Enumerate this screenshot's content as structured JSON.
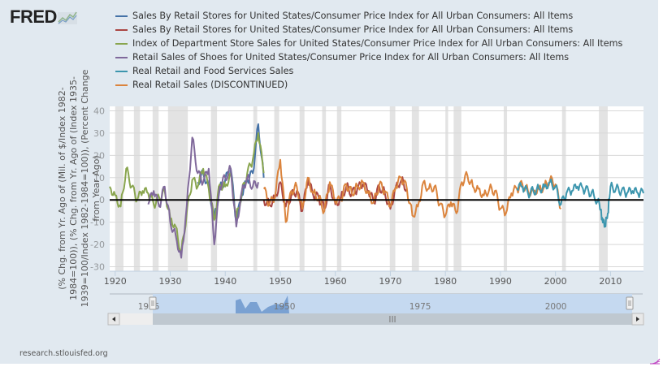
{
  "logo": {
    "text": "FRED",
    "icon": "fred-chart-icon"
  },
  "legend": [
    {
      "label": "Sales By Retail Stores for United States/Consumer Price Index for All Urban Consumers: All Items",
      "color": "#4572a7"
    },
    {
      "label": "Sales By Retail Stores for United States/Consumer Price Index for All Urban Consumers: All Items",
      "color": "#aa4643"
    },
    {
      "label": "Index of Department Store Sales for United States/Consumer Price Index for All Urban Consumers: All Items",
      "color": "#89a54e"
    },
    {
      "label": "Retail Sales of Shoes for United States/Consumer Price Index for All Urban Consumers: All Items",
      "color": "#80699b"
    },
    {
      "label": "Real Retail and Food Services Sales",
      "color": "#3d96ae"
    },
    {
      "label": "Real Retail Sales (DISCONTINUED)",
      "color": "#db843d"
    }
  ],
  "credit": "research.stlouisfed.org",
  "chart_data": {
    "type": "line",
    "title": "",
    "xlabel": "",
    "ylabel": "(% Chg. from Yr. Ago of (Mil. of $/Index 1982-1984=100)), (% Chg. from Yr. Ago of (Index 1935-1939=100/Index 1982-1984=100)), (Percent Change from Year Ago)",
    "ylabel_lines": [
      "(% Chg. from Yr. Ago of (Mil. of $/Index 1982-",
      "1984=100)), (% Chg. from Yr. Ago of (Index 1935-",
      "1939=100/Index 1982-1984=100)), (Percent Change",
      "from Year Ago)"
    ],
    "xlim": [
      1919,
      2016
    ],
    "ylim": [
      -32,
      42
    ],
    "x_ticks": [
      "1920",
      "1930",
      "1940",
      "1950",
      "1960",
      "1970",
      "1980",
      "1990",
      "2000",
      "2010"
    ],
    "y_ticks": [
      40,
      30,
      20,
      10,
      0,
      -10,
      -20,
      -30
    ],
    "grid": true,
    "legend_position": "top",
    "zero_line": true,
    "recessions": [
      [
        1920.0,
        1921.5
      ],
      [
        1923.4,
        1924.5
      ],
      [
        1926.8,
        1927.9
      ],
      [
        1929.6,
        1933.2
      ],
      [
        1937.4,
        1938.5
      ],
      [
        1945.1,
        1945.8
      ],
      [
        1948.9,
        1949.8
      ],
      [
        1953.5,
        1954.4
      ],
      [
        1957.6,
        1958.3
      ],
      [
        1960.3,
        1961.1
      ],
      [
        1969.9,
        1970.9
      ],
      [
        1973.9,
        1975.2
      ],
      [
        1980.0,
        1980.5
      ],
      [
        1981.5,
        1982.9
      ],
      [
        1990.6,
        1991.2
      ],
      [
        2001.2,
        2001.9
      ],
      [
        2007.9,
        2009.5
      ]
    ],
    "series": [
      {
        "name": "Sales By Retail Stores (blue)",
        "color": "#4572a7",
        "x": [
          1935,
          1936,
          1937,
          1938,
          1939,
          1940,
          1941,
          1942,
          1943,
          1944,
          1945,
          1946,
          1947
        ],
        "y": [
          8,
          12,
          6,
          -8,
          5,
          9,
          14,
          -10,
          2,
          9,
          12,
          34,
          10
        ]
      },
      {
        "name": "Sales By Retail Stores (red)",
        "color": "#aa4643",
        "x": [
          1947,
          1948,
          1949,
          1950,
          1951,
          1952,
          1953,
          1954,
          1955,
          1956,
          1957,
          1958,
          1959,
          1960,
          1961,
          1962,
          1963,
          1964,
          1965,
          1966,
          1967,
          1968,
          1969,
          1970,
          1971,
          1972,
          1973
        ],
        "y": [
          0,
          -2,
          1,
          8,
          -3,
          2,
          4,
          -5,
          9,
          2,
          1,
          -4,
          7,
          -2,
          1,
          6,
          3,
          5,
          7,
          4,
          -1,
          6,
          3,
          -4,
          6,
          9,
          5
        ]
      },
      {
        "name": "Index of Department Store Sales",
        "color": "#89a54e",
        "x": [
          1919,
          1920,
          1921,
          1922,
          1923,
          1924,
          1925,
          1926,
          1927,
          1928,
          1929,
          1930,
          1931,
          1932,
          1933,
          1934,
          1935,
          1936,
          1937,
          1938,
          1939,
          1940,
          1941,
          1942,
          1943,
          1944,
          1945,
          1946,
          1947
        ],
        "y": [
          6,
          2,
          -3,
          14,
          6,
          0,
          4,
          3,
          -2,
          1,
          4,
          -8,
          -12,
          -24,
          -6,
          9,
          6,
          14,
          5,
          -9,
          7,
          6,
          12,
          -8,
          3,
          12,
          18,
          30,
          12
        ]
      },
      {
        "name": "Retail Sales of Shoes",
        "color": "#80699b",
        "x": [
          1926,
          1927,
          1928,
          1929,
          1930,
          1931,
          1932,
          1933,
          1934,
          1935,
          1936,
          1937,
          1938,
          1939,
          1940,
          1941,
          1942,
          1943,
          1944,
          1945,
          1946
        ],
        "y": [
          -2,
          4,
          -3,
          6,
          -10,
          -16,
          -26,
          -3,
          28,
          12,
          8,
          14,
          -20,
          6,
          10,
          14,
          -12,
          4,
          10,
          6,
          8
        ]
      },
      {
        "name": "Real Retail Sales (DISCONTINUED)",
        "color": "#db843d",
        "x": [
          1947,
          1948,
          1949,
          1950,
          1951,
          1952,
          1953,
          1954,
          1955,
          1956,
          1957,
          1958,
          1959,
          1960,
          1961,
          1962,
          1963,
          1964,
          1965,
          1966,
          1967,
          1968,
          1969,
          1970,
          1971,
          1972,
          1973,
          1974,
          1975,
          1976,
          1977,
          1978,
          1979,
          1980,
          1981,
          1982,
          1983,
          1984,
          1985,
          1986,
          1987,
          1988,
          1989,
          1990,
          1991,
          1992,
          1993,
          1994,
          1995,
          1996,
          1997,
          1998,
          1999,
          2000,
          2001
        ],
        "y": [
          5,
          -2,
          1,
          18,
          -10,
          4,
          6,
          -4,
          10,
          3,
          1,
          -5,
          8,
          -1,
          0,
          7,
          3,
          6,
          8,
          3,
          -1,
          7,
          4,
          -3,
          6,
          10,
          5,
          -7,
          -3,
          8,
          5,
          6,
          -2,
          -7,
          -1,
          -6,
          8,
          11,
          6,
          5,
          2,
          5,
          4,
          -4,
          -6,
          3,
          5,
          7,
          4,
          4,
          5,
          6,
          9,
          7,
          -4
        ]
      },
      {
        "name": "Real Retail and Food Services Sales",
        "color": "#3d96ae",
        "x": [
          1993,
          1994,
          1995,
          1996,
          1997,
          1998,
          1999,
          2000,
          2001,
          2002,
          2003,
          2004,
          2005,
          2006,
          2007,
          2008,
          2008.5,
          2009,
          2009.5,
          2010,
          2011,
          2012,
          2013,
          2014,
          2015,
          2016
        ],
        "y": [
          5,
          6,
          3,
          4,
          5,
          6,
          8,
          6,
          -2,
          3,
          4,
          6,
          5,
          4,
          2,
          -2,
          -8,
          -11,
          -6,
          6,
          5,
          4,
          3,
          4,
          3,
          3
        ]
      }
    ]
  },
  "navigator": {
    "labels": [
      "1925",
      "1950",
      "1975",
      "2000"
    ],
    "range": [
      1919,
      2016
    ],
    "handle_left": "navigator-handle-left",
    "handle_right": "navigator-handle-right",
    "scroll_left_icon": "arrow-left-icon",
    "scroll_right_icon": "arrow-right-icon",
    "scroll_grip": "III"
  }
}
